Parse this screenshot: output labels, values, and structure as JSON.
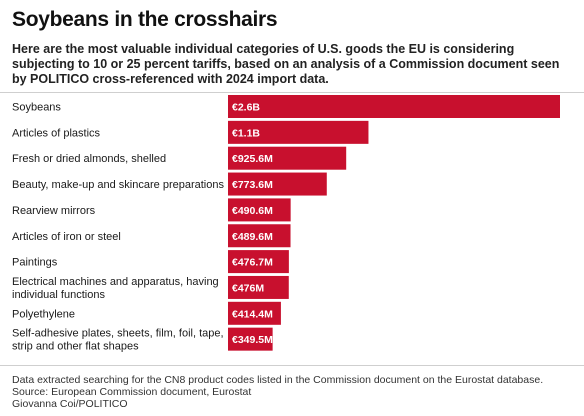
{
  "header": {
    "title": "Soybeans in the crosshairs",
    "subtitle": "Here are the most valuable individual categories of U.S. goods the EU is considering subjecting to 10 or 25 percent tariffs, based on an analysis of a Commission document seen by POLITICO cross-referenced with 2024 import data."
  },
  "footer": {
    "note": "Data extracted searching for the CN8 product codes listed in the Commission document on the Eurostat database.",
    "source": "Source: European Commission document, Eurostat",
    "credit": "Giovanna Coi/POLITICO"
  },
  "colors": {
    "bar": "#c8102e",
    "label_inside": "#ffffff",
    "label_outside": "#1a1a1a",
    "divider": "#cfcfcf"
  },
  "chart_data": {
    "type": "bar",
    "orientation": "horizontal",
    "categories": [
      [
        "Soybeans"
      ],
      [
        "Articles of plastics"
      ],
      [
        "Fresh or dried almonds, shelled"
      ],
      [
        "Beauty, make-up and skincare preparations"
      ],
      [
        "Rearview mirrors"
      ],
      [
        "Articles of iron or steel"
      ],
      [
        "Paintings"
      ],
      [
        "Electrical machines and apparatus, having",
        "individual functions"
      ],
      [
        "Polyethylene"
      ],
      [
        "Self-adhesive plates, sheets, film, foil, tape,",
        "strip and other flat shapes"
      ]
    ],
    "values": [
      2600,
      1100,
      925.6,
      773.6,
      490.6,
      489.6,
      476.7,
      476,
      414.4,
      349.5
    ],
    "value_unit": "million EUR",
    "data_labels": [
      "€2.6B",
      "€1.1B",
      "€925.6M",
      "€773.6M",
      "€490.6M",
      "€489.6M",
      "€476.7M",
      "€476M",
      "€414.4M",
      "€349.5M"
    ],
    "grid": false,
    "legend": "none"
  }
}
